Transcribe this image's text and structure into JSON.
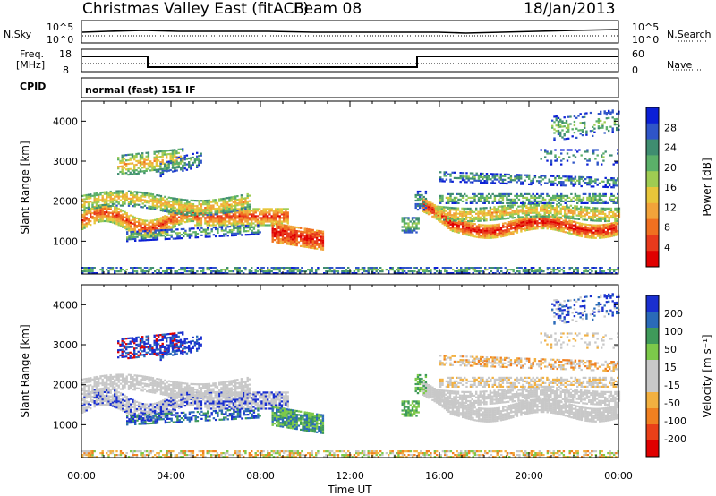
{
  "header": {
    "title": "Christmas Valley East (fitACF)",
    "beam": "Beam 08",
    "date": "18/Jan/2013"
  },
  "sky_panel": {
    "left_label": "N.Sky",
    "right_label": "N.Search",
    "y_ticks_left": [
      "10^5",
      "10^0"
    ],
    "y_ticks_right": [
      "10^5",
      "10^0"
    ]
  },
  "freq_panel": {
    "left_label": "Freq.\n[MHz]",
    "right_label": "Nave",
    "y_ticks_left": [
      "18",
      "8"
    ],
    "y_ticks_right": [
      "60",
      "0"
    ]
  },
  "cpid": {
    "label": "CPID",
    "value": "normal (fast) 151 IF"
  },
  "x_axis": {
    "label": "Time UT",
    "ticks": [
      "00:00",
      "04:00",
      "08:00",
      "12:00",
      "16:00",
      "20:00",
      "00:00"
    ]
  },
  "chart_data": [
    {
      "type": "heatmap",
      "title": "",
      "ylabel": "Slant Range [km]",
      "xlabel": "",
      "xlim": [
        0,
        24
      ],
      "ylim": [
        180,
        4500
      ],
      "y_ticks": [
        "4000",
        "3000",
        "2000",
        "1000"
      ],
      "colorbar": {
        "label": "Power [dB]",
        "ticks": [
          "28",
          "24",
          "20",
          "16",
          "12",
          "8",
          "4"
        ],
        "colors": [
          "#0b1fd6",
          "#2f55c8",
          "#3f8d70",
          "#5bb069",
          "#9fcc52",
          "#e8c63a",
          "#f2a33a",
          "#f07020",
          "#e83a1c",
          "#e00000"
        ]
      }
    },
    {
      "type": "heatmap",
      "title": "",
      "ylabel": "Slant Range [km]",
      "xlabel": "Time UT",
      "xlim": [
        0,
        24
      ],
      "ylim": [
        180,
        4500
      ],
      "y_ticks": [
        "4000",
        "3000",
        "2000",
        "1000"
      ],
      "colorbar": {
        "label": "Velocity [m s⁻¹]",
        "ticks": [
          "200",
          "100",
          "50",
          "15",
          "-15",
          "-50",
          "-100",
          "-200"
        ],
        "colors": [
          "#1a2fd0",
          "#2a6ab8",
          "#3f9a5a",
          "#7cc94a",
          "#c8c8c8",
          "#c8c8c8",
          "#f2b040",
          "#f08020",
          "#ea4018",
          "#e00000"
        ]
      }
    }
  ]
}
